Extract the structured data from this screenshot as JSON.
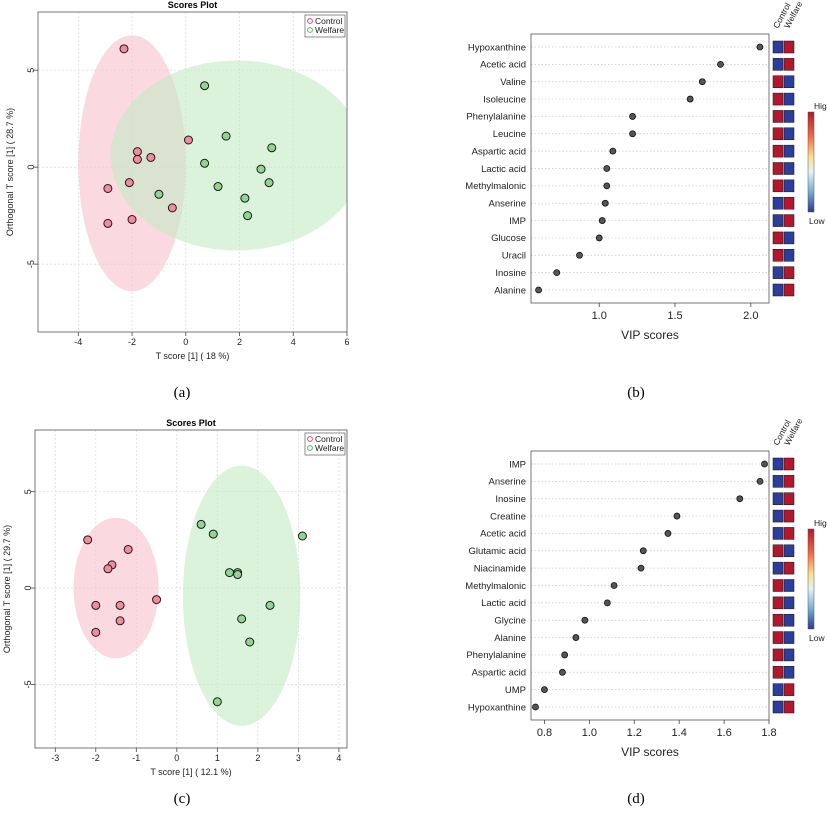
{
  "captions": [
    "(a)",
    "(b)",
    "(c)",
    "(d)"
  ],
  "colors": {
    "control_fill": "#f48a9f",
    "control_ellipse": "#f7c2cc",
    "welfare_fill": "#92d592",
    "welfare_ellipse": "#c3eac3",
    "overlap": "#d7c8b0",
    "heat_high": "#b2182b",
    "heat_low": "#2c3e9c",
    "vip_point": "#555555"
  },
  "chart_data": [
    {
      "id": "a",
      "type": "scatter",
      "title": "Scores Plot",
      "xlabel": "T score [1] ( 18 %)",
      "ylabel": "Orthogonal T score [1] ( 28.7 %)",
      "xlim": [
        -5.5,
        6
      ],
      "ylim": [
        -8.5,
        8
      ],
      "xticks": [
        -4,
        -2,
        0,
        2,
        4,
        6
      ],
      "yticks": [
        -5,
        0,
        5
      ],
      "grid": true,
      "legend": "top-right",
      "series": [
        {
          "name": "Control",
          "points": [
            [
              -2.3,
              6.1
            ],
            [
              -1.8,
              0.8
            ],
            [
              -1.8,
              0.4
            ],
            [
              -1.3,
              0.5
            ],
            [
              -2.1,
              -0.8
            ],
            [
              -2.9,
              -1.1
            ],
            [
              -2.0,
              -2.7
            ],
            [
              -2.9,
              -2.9
            ],
            [
              -0.5,
              -2.1
            ],
            [
              0.1,
              1.4
            ]
          ],
          "ellipse": {
            "cx": -2.0,
            "cy": 0.2,
            "rx": 2.0,
            "ry": 6.6
          }
        },
        {
          "name": "Welfare",
          "points": [
            [
              0.7,
              4.2
            ],
            [
              1.5,
              1.6
            ],
            [
              3.2,
              1.0
            ],
            [
              0.7,
              0.2
            ],
            [
              2.8,
              -0.1
            ],
            [
              3.1,
              -0.8
            ],
            [
              1.2,
              -1.0
            ],
            [
              -1.0,
              -1.4
            ],
            [
              2.2,
              -1.6
            ],
            [
              2.3,
              -2.5
            ]
          ],
          "ellipse": {
            "cx": 1.9,
            "cy": 0.6,
            "rx": 4.7,
            "ry": 4.9
          }
        }
      ]
    },
    {
      "id": "b",
      "type": "scatter",
      "xlabel": "VIP scores",
      "xlim": [
        0.55,
        2.12
      ],
      "xticks": [
        1.0,
        1.5,
        2.0
      ],
      "heatmap_columns": [
        "Control",
        "Welfare"
      ],
      "colorbar": {
        "high": "High",
        "low": "Low"
      },
      "rows": [
        {
          "name": "Hypoxanthine",
          "vip": 2.06,
          "heat": [
            "low",
            "high"
          ]
        },
        {
          "name": "Acetic acid",
          "vip": 1.8,
          "heat": [
            "low",
            "high"
          ]
        },
        {
          "name": "Valine",
          "vip": 1.68,
          "heat": [
            "high",
            "low"
          ]
        },
        {
          "name": "Isoleucine",
          "vip": 1.6,
          "heat": [
            "high",
            "low"
          ]
        },
        {
          "name": "Phenylalanine",
          "vip": 1.22,
          "heat": [
            "high",
            "low"
          ]
        },
        {
          "name": "Leucine",
          "vip": 1.22,
          "heat": [
            "high",
            "low"
          ]
        },
        {
          "name": "Aspartic acid",
          "vip": 1.09,
          "heat": [
            "high",
            "low"
          ]
        },
        {
          "name": "Lactic acid",
          "vip": 1.05,
          "heat": [
            "high",
            "low"
          ]
        },
        {
          "name": "Methylmalonic",
          "vip": 1.05,
          "heat": [
            "high",
            "low"
          ]
        },
        {
          "name": "Anserine",
          "vip": 1.04,
          "heat": [
            "low",
            "high"
          ]
        },
        {
          "name": "IMP",
          "vip": 1.02,
          "heat": [
            "low",
            "high"
          ]
        },
        {
          "name": "Glucose",
          "vip": 1.0,
          "heat": [
            "high",
            "low"
          ]
        },
        {
          "name": "Uracil",
          "vip": 0.87,
          "heat": [
            "high",
            "low"
          ]
        },
        {
          "name": "Inosine",
          "vip": 0.72,
          "heat": [
            "low",
            "high"
          ]
        },
        {
          "name": "Alanine",
          "vip": 0.6,
          "heat": [
            "low",
            "high"
          ]
        }
      ]
    },
    {
      "id": "c",
      "type": "scatter",
      "title": "Scores Plot",
      "xlabel": "T score [1] ( 12.1 %)",
      "ylabel": "Orthogonal T score [1] ( 29.7 %)",
      "xlim": [
        -3.5,
        4.2
      ],
      "ylim": [
        -8.3,
        8.2
      ],
      "xticks": [
        -3,
        -2,
        -1,
        0,
        1,
        2,
        3,
        4
      ],
      "yticks": [
        -5,
        0,
        5
      ],
      "grid": true,
      "legend": "top-right",
      "series": [
        {
          "name": "Control",
          "points": [
            [
              -2.2,
              2.5
            ],
            [
              -1.2,
              2.0
            ],
            [
              -1.6,
              1.2
            ],
            [
              -1.7,
              1.0
            ],
            [
              -2.0,
              -0.9
            ],
            [
              -1.4,
              -0.9
            ],
            [
              -0.5,
              -0.6
            ],
            [
              -1.4,
              -1.7
            ],
            [
              -2.0,
              -2.3
            ]
          ],
          "ellipse": {
            "cx": -1.5,
            "cy": 0.0,
            "rx": 1.05,
            "ry": 3.65
          }
        },
        {
          "name": "Welfare",
          "points": [
            [
              0.6,
              3.3
            ],
            [
              0.9,
              2.8
            ],
            [
              3.1,
              2.7
            ],
            [
              1.3,
              0.8
            ],
            [
              1.5,
              0.8
            ],
            [
              1.5,
              0.7
            ],
            [
              2.3,
              -0.9
            ],
            [
              1.6,
              -1.6
            ],
            [
              1.8,
              -2.8
            ],
            [
              1.0,
              -5.9
            ]
          ],
          "ellipse": {
            "cx": 1.6,
            "cy": -0.4,
            "rx": 1.45,
            "ry": 6.75
          }
        }
      ]
    },
    {
      "id": "d",
      "type": "scatter",
      "xlabel": "VIP scores",
      "xlim": [
        0.74,
        1.8
      ],
      "xticks": [
        0.8,
        1.0,
        1.2,
        1.4,
        1.6,
        1.8
      ],
      "heatmap_columns": [
        "Control",
        "Welfare"
      ],
      "colorbar": {
        "high": "High",
        "low": "Low"
      },
      "rows": [
        {
          "name": "IMP",
          "vip": 1.78,
          "heat": [
            "low",
            "high"
          ]
        },
        {
          "name": "Anserine",
          "vip": 1.76,
          "heat": [
            "low",
            "high"
          ]
        },
        {
          "name": "Inosine",
          "vip": 1.67,
          "heat": [
            "low",
            "high"
          ]
        },
        {
          "name": "Creatine",
          "vip": 1.39,
          "heat": [
            "low",
            "high"
          ]
        },
        {
          "name": "Acetic acid",
          "vip": 1.35,
          "heat": [
            "low",
            "high"
          ]
        },
        {
          "name": "Glutamic acid",
          "vip": 1.24,
          "heat": [
            "high",
            "low"
          ]
        },
        {
          "name": "Niacinamide",
          "vip": 1.23,
          "heat": [
            "low",
            "high"
          ]
        },
        {
          "name": "Methylmalonic",
          "vip": 1.11,
          "heat": [
            "high",
            "low"
          ]
        },
        {
          "name": "Lactic acid",
          "vip": 1.08,
          "heat": [
            "high",
            "low"
          ]
        },
        {
          "name": "Glycine",
          "vip": 0.98,
          "heat": [
            "high",
            "low"
          ]
        },
        {
          "name": "Alanine",
          "vip": 0.94,
          "heat": [
            "high",
            "low"
          ]
        },
        {
          "name": "Phenylalanine",
          "vip": 0.89,
          "heat": [
            "high",
            "low"
          ]
        },
        {
          "name": "Aspartic acid",
          "vip": 0.88,
          "heat": [
            "high",
            "low"
          ]
        },
        {
          "name": "UMP",
          "vip": 0.8,
          "heat": [
            "low",
            "high"
          ]
        },
        {
          "name": "Hypoxanthine",
          "vip": 0.76,
          "heat": [
            "low",
            "high"
          ]
        }
      ]
    }
  ]
}
